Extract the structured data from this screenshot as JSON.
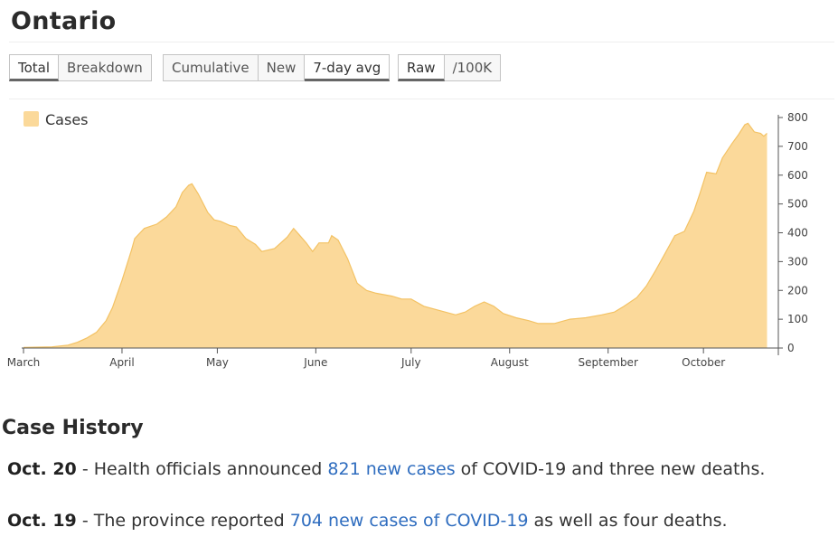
{
  "page": {
    "title": "Ontario"
  },
  "toolbar": {
    "group1": [
      {
        "label": "Total",
        "active": true
      },
      {
        "label": "Breakdown",
        "active": false
      }
    ],
    "group2": [
      {
        "label": "Cumulative",
        "active": false
      },
      {
        "label": "New",
        "active": false
      },
      {
        "label": "7-day avg",
        "active": true
      }
    ],
    "group3": [
      {
        "label": "Raw",
        "active": true
      },
      {
        "label": "/100K",
        "active": false
      }
    ]
  },
  "chart_data": {
    "type": "area",
    "legend": {
      "label": "Cases",
      "color": "#fbd99a",
      "placement": "top-left"
    },
    "ylim": [
      0,
      800
    ],
    "yticks": [
      0,
      100,
      200,
      300,
      400,
      500,
      600,
      700,
      800
    ],
    "xlim": [
      "2020-03-01",
      "2020-10-24"
    ],
    "xticks": [
      {
        "date": "2020-03-01",
        "label": "March"
      },
      {
        "date": "2020-04-01",
        "label": "April"
      },
      {
        "date": "2020-05-01",
        "label": "May"
      },
      {
        "date": "2020-06-01",
        "label": "June"
      },
      {
        "date": "2020-07-01",
        "label": "July"
      },
      {
        "date": "2020-08-01",
        "label": "August"
      },
      {
        "date": "2020-09-01",
        "label": "September"
      },
      {
        "date": "2020-10-01",
        "label": "October"
      }
    ],
    "series": [
      {
        "name": "Cases",
        "color": "#fbd99a",
        "stroke": "#f3c264",
        "points": [
          [
            "2020-03-01",
            2
          ],
          [
            "2020-03-10",
            4
          ],
          [
            "2020-03-15",
            10
          ],
          [
            "2020-03-18",
            20
          ],
          [
            "2020-03-21",
            35
          ],
          [
            "2020-03-24",
            55
          ],
          [
            "2020-03-27",
            95
          ],
          [
            "2020-03-29",
            140
          ],
          [
            "2020-04-01",
            235
          ],
          [
            "2020-04-04",
            340
          ],
          [
            "2020-04-05",
            380
          ],
          [
            "2020-04-08",
            415
          ],
          [
            "2020-04-12",
            430
          ],
          [
            "2020-04-15",
            455
          ],
          [
            "2020-04-18",
            490
          ],
          [
            "2020-04-20",
            540
          ],
          [
            "2020-04-22",
            565
          ],
          [
            "2020-04-23",
            570
          ],
          [
            "2020-04-25",
            535
          ],
          [
            "2020-04-28",
            470
          ],
          [
            "2020-04-30",
            445
          ],
          [
            "2020-05-02",
            440
          ],
          [
            "2020-05-05",
            425
          ],
          [
            "2020-05-07",
            420
          ],
          [
            "2020-05-10",
            380
          ],
          [
            "2020-05-13",
            360
          ],
          [
            "2020-05-15",
            335
          ],
          [
            "2020-05-19",
            345
          ],
          [
            "2020-05-23",
            385
          ],
          [
            "2020-05-25",
            415
          ],
          [
            "2020-05-27",
            390
          ],
          [
            "2020-05-29",
            365
          ],
          [
            "2020-05-31",
            335
          ],
          [
            "2020-06-02",
            365
          ],
          [
            "2020-06-05",
            365
          ],
          [
            "2020-06-06",
            390
          ],
          [
            "2020-06-08",
            375
          ],
          [
            "2020-06-11",
            310
          ],
          [
            "2020-06-14",
            225
          ],
          [
            "2020-06-17",
            200
          ],
          [
            "2020-06-20",
            190
          ],
          [
            "2020-06-25",
            180
          ],
          [
            "2020-06-28",
            170
          ],
          [
            "2020-07-01",
            170
          ],
          [
            "2020-07-05",
            145
          ],
          [
            "2020-07-10",
            130
          ],
          [
            "2020-07-15",
            115
          ],
          [
            "2020-07-18",
            125
          ],
          [
            "2020-07-21",
            145
          ],
          [
            "2020-07-24",
            160
          ],
          [
            "2020-07-27",
            145
          ],
          [
            "2020-07-30",
            120
          ],
          [
            "2020-08-03",
            105
          ],
          [
            "2020-08-07",
            95
          ],
          [
            "2020-08-10",
            85
          ],
          [
            "2020-08-15",
            85
          ],
          [
            "2020-08-20",
            100
          ],
          [
            "2020-08-25",
            105
          ],
          [
            "2020-08-30",
            115
          ],
          [
            "2020-09-03",
            125
          ],
          [
            "2020-09-06",
            145
          ],
          [
            "2020-09-10",
            175
          ],
          [
            "2020-09-13",
            215
          ],
          [
            "2020-09-16",
            270
          ],
          [
            "2020-09-19",
            330
          ],
          [
            "2020-09-22",
            390
          ],
          [
            "2020-09-25",
            405
          ],
          [
            "2020-09-28",
            475
          ],
          [
            "2020-09-30",
            540
          ],
          [
            "2020-10-02",
            610
          ],
          [
            "2020-10-05",
            605
          ],
          [
            "2020-10-07",
            660
          ],
          [
            "2020-10-10",
            710
          ],
          [
            "2020-10-12",
            740
          ],
          [
            "2020-10-14",
            775
          ],
          [
            "2020-10-15",
            780
          ],
          [
            "2020-10-17",
            750
          ],
          [
            "2020-10-19",
            745
          ],
          [
            "2020-10-20",
            735
          ],
          [
            "2020-10-21",
            745
          ]
        ]
      }
    ]
  },
  "case_history": {
    "title": "Case History",
    "items": [
      {
        "date": "Oct. 20",
        "before": " - Health officials announced ",
        "link": "821 new cases",
        "after": " of COVID-19 and three new deaths."
      },
      {
        "date": "Oct. 19",
        "before": " - The province reported ",
        "link": "704 new cases of COVID-19",
        "after": " as well as four deaths."
      }
    ]
  }
}
